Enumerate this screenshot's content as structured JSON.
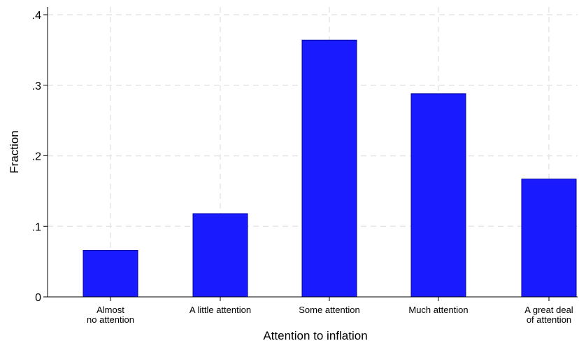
{
  "chart_data": {
    "type": "bar",
    "title": "",
    "xlabel": "Attention to inflation",
    "ylabel": "Fraction",
    "categories": [
      [
        "Almost",
        "no attention"
      ],
      [
        "A little attention"
      ],
      [
        "Some attention"
      ],
      [
        "Much attention"
      ],
      [
        "A great deal",
        "of attention"
      ]
    ],
    "values": [
      0.066,
      0.118,
      0.364,
      0.288,
      0.167
    ],
    "ylim": [
      0,
      0.4
    ],
    "yticks": [
      0,
      0.1,
      0.2,
      0.3,
      0.4
    ],
    "ytick_labels": [
      "0",
      ".1",
      ".2",
      ".3",
      ".4"
    ],
    "grid": true,
    "bar_color": "#1a1aff",
    "bar_edge_color": "#0000a0",
    "grid_color": "#e6e6e6"
  }
}
